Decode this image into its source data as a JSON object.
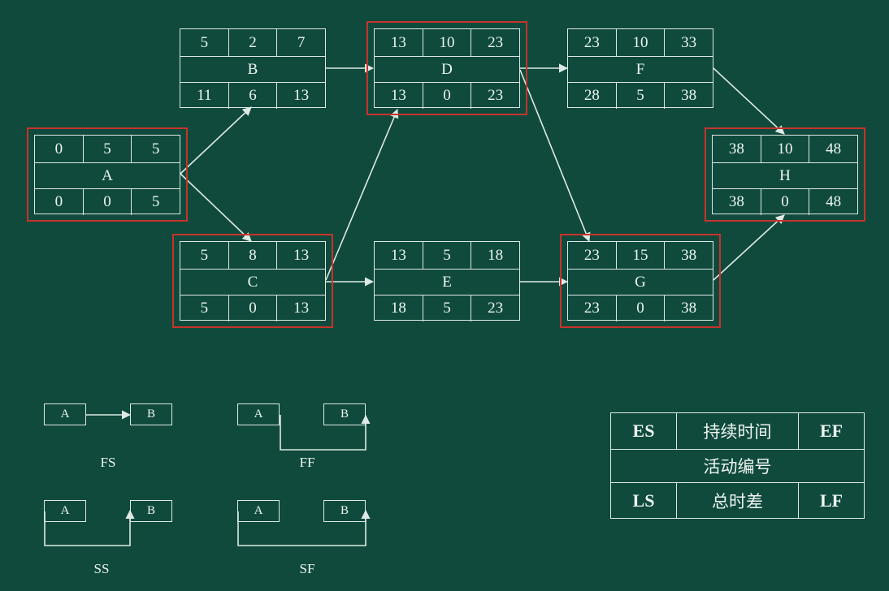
{
  "network": {
    "nodes": [
      {
        "id": "A",
        "es": "0",
        "dur": "5",
        "ef": "5",
        "ls": "0",
        "tf": "0",
        "lf": "5",
        "critical": true
      },
      {
        "id": "B",
        "es": "5",
        "dur": "2",
        "ef": "7",
        "ls": "11",
        "tf": "6",
        "lf": "13",
        "critical": false
      },
      {
        "id": "C",
        "es": "5",
        "dur": "8",
        "ef": "13",
        "ls": "5",
        "tf": "0",
        "lf": "13",
        "critical": true
      },
      {
        "id": "D",
        "es": "13",
        "dur": "10",
        "ef": "23",
        "ls": "13",
        "tf": "0",
        "lf": "23",
        "critical": true
      },
      {
        "id": "E",
        "es": "13",
        "dur": "5",
        "ef": "18",
        "ls": "18",
        "tf": "5",
        "lf": "23",
        "critical": false
      },
      {
        "id": "F",
        "es": "23",
        "dur": "10",
        "ef": "33",
        "ls": "28",
        "tf": "5",
        "lf": "38",
        "critical": false
      },
      {
        "id": "G",
        "es": "23",
        "dur": "15",
        "ef": "38",
        "ls": "23",
        "tf": "0",
        "lf": "38",
        "critical": true
      },
      {
        "id": "H",
        "es": "38",
        "dur": "10",
        "ef": "48",
        "ls": "38",
        "tf": "0",
        "lf": "48",
        "critical": true
      }
    ],
    "edges": [
      [
        "A",
        "B"
      ],
      [
        "A",
        "C"
      ],
      [
        "B",
        "D"
      ],
      [
        "C",
        "D"
      ],
      [
        "C",
        "E"
      ],
      [
        "D",
        "F"
      ],
      [
        "D",
        "G"
      ],
      [
        "E",
        "G"
      ],
      [
        "F",
        "H"
      ],
      [
        "G",
        "H"
      ]
    ],
    "critical_color": "#c8332b",
    "line_color": "#dfe9e3"
  },
  "dependency_types": {
    "fs": {
      "label": "FS",
      "from": "A",
      "to": "B"
    },
    "ff": {
      "label": "FF",
      "from": "A",
      "to": "B"
    },
    "ss": {
      "label": "SS",
      "from": "A",
      "to": "B"
    },
    "sf": {
      "label": "SF",
      "from": "A",
      "to": "B"
    }
  },
  "legend": {
    "es": "ES",
    "duration": "持续时间",
    "ef": "EF",
    "activity": "活动编号",
    "ls": "LS",
    "total_float": "总时差",
    "lf": "LF"
  }
}
